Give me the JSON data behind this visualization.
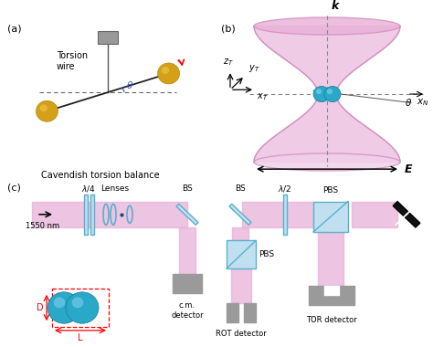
{
  "bg_color": "#ffffff",
  "gold_color": "#d4a017",
  "gold_dark": "#b8860b",
  "cyan_color": "#29a8c8",
  "cyan_dark": "#1a7a96",
  "pink_color": "#e8b0d8",
  "pink_mid": "#d090c0",
  "pink_light": "#f0d0e8",
  "gray_det": "#9a9a9a",
  "blue_comp": "#5ab0cc",
  "blue_comp_fill": "#c0e0f0",
  "label_a": "(a)",
  "label_b": "(b)",
  "label_c": "(c)",
  "caption_a": "Cavendish torsion balance",
  "torsion_wire": "Torsion\nwire",
  "caption_nm": "1550 nm",
  "caption_lenses": "Lenses",
  "caption_lhalf": "$\\lambda$/2",
  "caption_lquart": "$\\lambda$/4",
  "caption_bs": "BS",
  "caption_pbs": "PBS",
  "caption_cmd": "c.m.\ndetector",
  "caption_rotd": "ROT detector",
  "caption_tord": "TOR detector",
  "caption_k": "k",
  "caption_E": "E",
  "caption_D": "D",
  "caption_L": "L"
}
